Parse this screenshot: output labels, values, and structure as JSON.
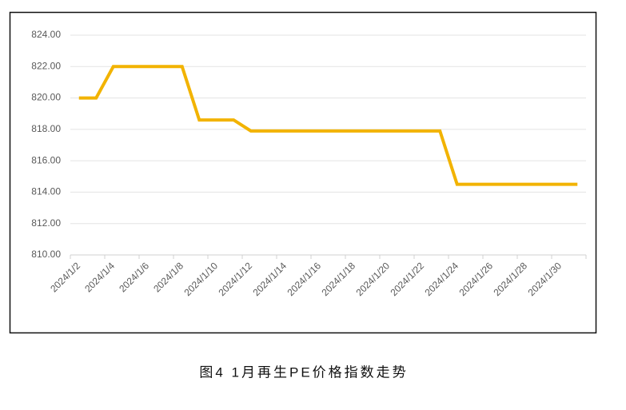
{
  "chart_data": {
    "type": "line",
    "categories": [
      "2024/1/2",
      null,
      "2024/1/4",
      null,
      "2024/1/6",
      null,
      "2024/1/8",
      null,
      "2024/1/10",
      null,
      "2024/1/12",
      null,
      "2024/1/14",
      null,
      "2024/1/16",
      null,
      "2024/1/18",
      null,
      "2024/1/20",
      null,
      "2024/1/22",
      null,
      "2024/1/24",
      null,
      "2024/1/26",
      null,
      "2024/1/28",
      null,
      "2024/1/30",
      null
    ],
    "values": [
      820,
      820,
      822,
      822,
      822,
      822,
      822,
      818.6,
      818.6,
      818.6,
      817.9,
      817.9,
      817.9,
      817.9,
      817.9,
      817.9,
      817.9,
      817.9,
      817.9,
      817.9,
      817.9,
      817.9,
      814.5,
      814.5,
      814.5,
      814.5,
      814.5,
      814.5,
      814.5,
      814.5
    ],
    "color": "#f2b300",
    "ylim": [
      810,
      824
    ],
    "yticks": [
      {
        "value": 810,
        "label": "810.00"
      },
      {
        "value": 812,
        "label": "812.00"
      },
      {
        "value": 814,
        "label": "814.00"
      },
      {
        "value": 816,
        "label": "816.00"
      },
      {
        "value": 818,
        "label": "818.00"
      },
      {
        "value": 820,
        "label": "820.00"
      },
      {
        "value": 822,
        "label": "822.00"
      },
      {
        "value": 824,
        "label": "824.00"
      }
    ],
    "grid": true,
    "caption": "图4  1月再生PE价格指数走势"
  }
}
